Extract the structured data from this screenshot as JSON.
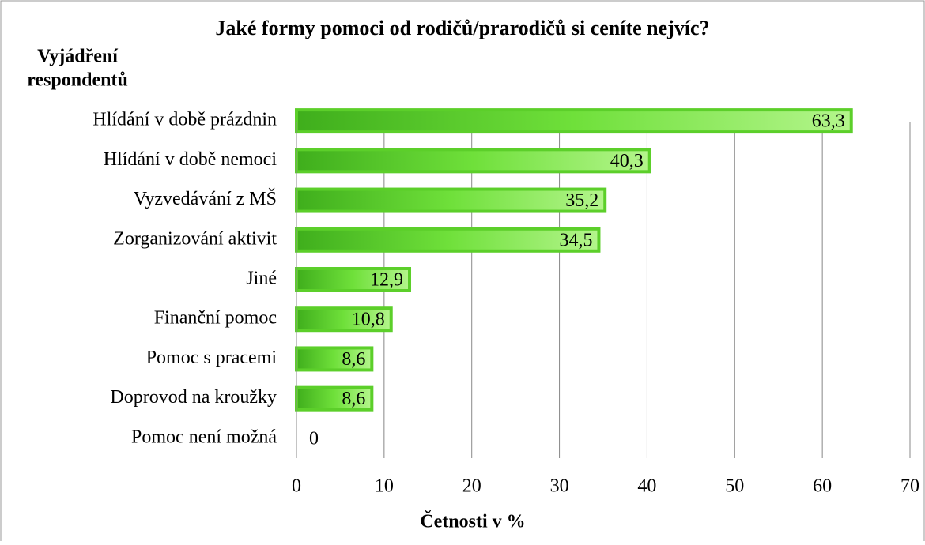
{
  "chart_data": {
    "type": "bar",
    "orientation": "horizontal",
    "title": "Jaké formy pomoci od rodičů/prarodičů si ceníte nejvíc?",
    "y_label": [
      "Vyjádření",
      "respondentů"
    ],
    "x_label": "Četnosti v %",
    "categories": [
      "Hlídání v době prázdnin",
      "Hlídání v době nemoci",
      "Vyzvedávání z MŠ",
      "Zorganizování aktivit",
      "Jiné",
      "Finanční pomoc",
      "Pomoc s pracemi",
      "Doprovod na kroužky",
      "Pomoc není možná"
    ],
    "values": [
      63.3,
      40.3,
      35.2,
      34.5,
      12.9,
      10.8,
      8.6,
      8.6,
      0
    ],
    "value_labels": [
      "63,3",
      "40,3",
      "35,2",
      "34,5",
      "12,9",
      "10,8",
      "8,6",
      "8,6",
      "0"
    ],
    "color": "#5ccf2a",
    "xlim": [
      0,
      70
    ],
    "xticks": [
      0,
      10,
      20,
      30,
      40,
      50,
      60,
      70
    ],
    "grid": true
  }
}
